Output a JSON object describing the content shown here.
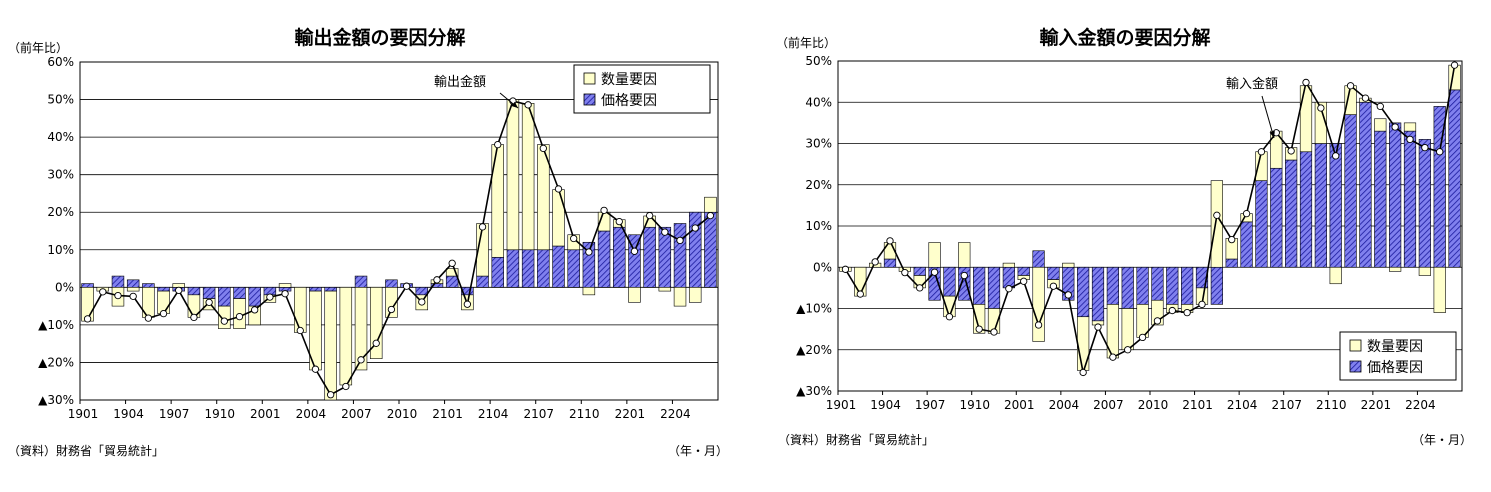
{
  "colors": {
    "quantity_fill": "#ffffcc",
    "price_fill": "#8080ee",
    "price_hatch": "#1a1a9c",
    "line": "#000000",
    "marker_fill": "#ffffff",
    "grid": "#000000"
  },
  "chart_data": [
    {
      "type": "bar",
      "id": "export",
      "title": "輸出金額の要因分解",
      "ylabel": "（前年比）",
      "xlabel": "（年・月）",
      "source": "（資料）財務省「貿易統計」",
      "annotation": "輸出金額",
      "legend_position": "top-right",
      "ylim": [
        -30,
        60
      ],
      "yticks": [
        {
          "v": 60,
          "label": "60%"
        },
        {
          "v": 50,
          "label": "50%"
        },
        {
          "v": 40,
          "label": "40%"
        },
        {
          "v": 30,
          "label": "30%"
        },
        {
          "v": 20,
          "label": "20%"
        },
        {
          "v": 10,
          "label": "10%"
        },
        {
          "v": 0,
          "label": "0%"
        },
        {
          "v": -10,
          "label": "▲10%"
        },
        {
          "v": -20,
          "label": "▲20%"
        },
        {
          "v": -30,
          "label": "▲30%"
        }
      ],
      "x": [
        "1901",
        "1902",
        "1903",
        "1904",
        "1905",
        "1906",
        "1907",
        "1908",
        "1909",
        "1910",
        "1911",
        "1912",
        "2001",
        "2002",
        "2003",
        "2004",
        "2005",
        "2006",
        "2007",
        "2008",
        "2009",
        "2010",
        "2011",
        "2012",
        "2101",
        "2102",
        "2103",
        "2104",
        "2105",
        "2106",
        "2107",
        "2108",
        "2109",
        "2110",
        "2111",
        "2112",
        "2201",
        "2202",
        "2203",
        "2204",
        "2205",
        "2206"
      ],
      "xtick_labels": [
        "1901",
        "1904",
        "1907",
        "1910",
        "2001",
        "2004",
        "2007",
        "2010",
        "2101",
        "2104",
        "2107",
        "2110",
        "2201",
        "2204"
      ],
      "series": [
        {
          "name": "数量要因",
          "kind": "bar",
          "values": [
            -9,
            -1,
            -5,
            -1,
            -8,
            -6,
            1,
            -6,
            -3,
            -6,
            -8,
            -5,
            -2,
            1,
            -12,
            -21,
            -29,
            -26,
            -22,
            -19,
            -8,
            0,
            -4,
            1,
            2,
            -4,
            14,
            30,
            40,
            39,
            28,
            15,
            4,
            -2,
            5,
            2,
            -4,
            3,
            -1,
            -5,
            -4,
            4
          ]
        },
        {
          "name": "価格要因",
          "kind": "bar",
          "values": [
            1,
            0,
            3,
            2,
            1,
            -1,
            -1,
            -2,
            -3,
            -5,
            -3,
            -5,
            -2,
            -1,
            0,
            -1,
            -1,
            0,
            3,
            0,
            2,
            1,
            -2,
            1,
            3,
            -2,
            3,
            8,
            10,
            10,
            10,
            11,
            10,
            12,
            15,
            16,
            14,
            16,
            16,
            17,
            20,
            20
          ]
        },
        {
          "name": "輸出金額",
          "kind": "line",
          "values": [
            -8.4,
            -1.2,
            -2.2,
            -2.4,
            -8.2,
            -7.0,
            -0.8,
            -8.0,
            -4.0,
            -9.0,
            -7.8,
            -6.0,
            -2.6,
            -1.7,
            -11.5,
            -21.8,
            -28.6,
            -26.4,
            -19.3,
            -14.9,
            -5.9,
            0.3,
            -3.9,
            2.0,
            6.4,
            -4.5,
            16.1,
            38.0,
            49.6,
            48.6,
            37.0,
            26.2,
            13.0,
            9.4,
            20.5,
            17.5,
            9.6,
            19.1,
            14.7,
            12.5,
            15.8,
            19.1
          ]
        }
      ]
    },
    {
      "type": "bar",
      "id": "import",
      "title": "輸入金額の要因分解",
      "ylabel": "（前年比）",
      "xlabel": "（年・月）",
      "source": "（資料）財務省「貿易統計」",
      "annotation": "輸入金額",
      "legend_position": "bottom-right",
      "ylim": [
        -30,
        50
      ],
      "yticks": [
        {
          "v": 50,
          "label": "50%"
        },
        {
          "v": 40,
          "label": "40%"
        },
        {
          "v": 30,
          "label": "30%"
        },
        {
          "v": 20,
          "label": "20%"
        },
        {
          "v": 10,
          "label": "10%"
        },
        {
          "v": 0,
          "label": "0%"
        },
        {
          "v": -10,
          "label": "▲10%"
        },
        {
          "v": -20,
          "label": "▲20%"
        },
        {
          "v": -30,
          "label": "▲30%"
        }
      ],
      "x": [
        "1901",
        "1902",
        "1903",
        "1904",
        "1905",
        "1906",
        "1907",
        "1908",
        "1909",
        "1910",
        "1911",
        "1912",
        "2001",
        "2002",
        "2003",
        "2004",
        "2005",
        "2006",
        "2007",
        "2008",
        "2009",
        "2010",
        "2011",
        "2012",
        "2101",
        "2102",
        "2103",
        "2104",
        "2105",
        "2106",
        "2107",
        "2108",
        "2109",
        "2110",
        "2111",
        "2112",
        "2201",
        "2202",
        "2203",
        "2204",
        "2205",
        "2206"
      ],
      "xtick_labels": [
        "1901",
        "1904",
        "1907",
        "1910",
        "2001",
        "2004",
        "2007",
        "2010",
        "2101",
        "2104",
        "2107",
        "2110",
        "2201",
        "2204"
      ],
      "series": [
        {
          "name": "数量要因",
          "kind": "bar",
          "values": [
            -1,
            -7,
            1,
            4,
            -1,
            -3,
            6,
            -5,
            6,
            -7,
            -6,
            1,
            -1,
            -18,
            -2,
            1,
            -13,
            -1,
            -13,
            -10,
            -8,
            -6,
            -2,
            -2,
            -4,
            21,
            5,
            2,
            7,
            9,
            3,
            16,
            10,
            -4,
            7,
            1,
            3,
            -1,
            2,
            -2,
            -11,
            6
          ]
        },
        {
          "name": "価格要因",
          "kind": "bar",
          "values": [
            0,
            0,
            0,
            2,
            0,
            -2,
            -8,
            -7,
            -8,
            -9,
            -10,
            -5,
            -2,
            4,
            -3,
            -8,
            -12,
            -13,
            -9,
            -10,
            -9,
            -8,
            -9,
            -9,
            -5,
            -9,
            2,
            11,
            21,
            24,
            26,
            28,
            30,
            30,
            37,
            40,
            33,
            35,
            33,
            31,
            39,
            43
          ]
        },
        {
          "name": "輸入金額",
          "kind": "line",
          "values": [
            -0.5,
            -6.5,
            1.3,
            6.4,
            -1.3,
            -5.0,
            -1.2,
            -12.0,
            -2.0,
            -15.0,
            -15.7,
            -5.2,
            -3.4,
            -14.0,
            -4.6,
            -6.7,
            -25.5,
            -14.5,
            -21.8,
            -20.0,
            -17.0,
            -13.0,
            -10.5,
            -11.0,
            -9.0,
            12.6,
            6.7,
            13.0,
            28.0,
            32.6,
            28.2,
            44.8,
            38.6,
            27.0,
            44.0,
            41.0,
            39.0,
            34.0,
            31.0,
            29.0,
            28.0,
            49.0
          ]
        }
      ]
    }
  ]
}
